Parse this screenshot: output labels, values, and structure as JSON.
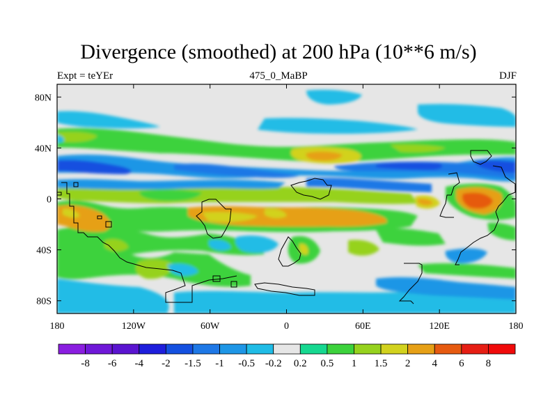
{
  "title": "Divergence (smoothed) at 200 hPa (10**6 m/s)",
  "subtitle_left": "Expt = teYEr",
  "subtitle_center": "475_0_MaBP",
  "subtitle_right": "DJF",
  "background_color": "#e6e6e6",
  "lat_labels": [
    "80N",
    "40N",
    "0",
    "40S",
    "80S"
  ],
  "lon_labels": [
    "180",
    "120W",
    "60W",
    "0",
    "60E",
    "120E",
    "180"
  ],
  "colorbar": {
    "labels": [
      "-8",
      "-6",
      "-4",
      "-2",
      "-1.5",
      "-1",
      "-0.5",
      "-0.2",
      "0.2",
      "0.5",
      "1",
      "1.5",
      "2",
      "4",
      "6",
      "8"
    ],
    "colors": [
      "#8a1ee0",
      "#6f18d8",
      "#5a14d0",
      "#1e1edc",
      "#1450e0",
      "#1e78e6",
      "#1e96e6",
      "#20bce6",
      "#e6e6e6",
      "#16d890",
      "#3cd23c",
      "#96d21e",
      "#d2d21e",
      "#e6a016",
      "#e65a10",
      "#e61e14",
      "#f00a0a"
    ]
  },
  "chart_data": {
    "type": "heatmap",
    "title": "Divergence (smoothed) at 200 hPa (10**6 m/s)",
    "units": "10**6 m/s",
    "level": "200 hPa",
    "experiment": "teYEr",
    "time": "475_0_MaBP",
    "season": "DJF",
    "xlim": [
      -180,
      180
    ],
    "ylim": [
      -90,
      90
    ],
    "x_ticks": [
      -180,
      -120,
      -60,
      0,
      60,
      120,
      180
    ],
    "y_ticks": [
      80,
      40,
      0,
      -40,
      -80
    ],
    "contour_levels": [
      -8,
      -6,
      -4,
      -2,
      -1.5,
      -1,
      -0.5,
      -0.2,
      0.2,
      0.5,
      1,
      1.5,
      2,
      4,
      6,
      8
    ],
    "features": [
      {
        "lon_range": [
          -180,
          180
        ],
        "lat_range": [
          28,
          50
        ],
        "value": 1,
        "note": "positive band"
      },
      {
        "lon_range": [
          -180,
          180
        ],
        "lat_range": [
          10,
          28
        ],
        "value": -1.5,
        "note": "negative band"
      },
      {
        "lon_range": [
          -180,
          180
        ],
        "lat_range": [
          -30,
          -5
        ],
        "value": 1.5,
        "note": "southern positive band"
      },
      {
        "lon_range": [
          140,
          180
        ],
        "lat_range": [
          -5,
          5
        ],
        "value": 4,
        "note": "max near dateline"
      }
    ]
  }
}
